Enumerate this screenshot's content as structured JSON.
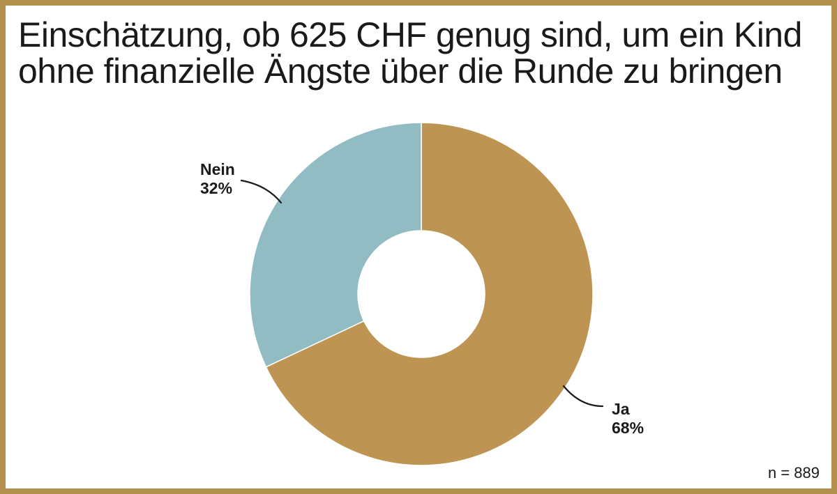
{
  "frame": {
    "border_color": "#b2914e",
    "background_color": "#ffffff"
  },
  "title": {
    "full": "Einschätzung, ob 625 CHF genug sind, um ein Kind ohne finanzielle Ängste über die Runde zu bringen",
    "line1": "Einschätzung, ob 625 CHF genug sind, um ein Kind",
    "line2": "ohne finanzielle Ängste über die Runde zu bringen"
  },
  "chart_data": {
    "type": "pie",
    "subtype": "donut",
    "title": "Einschätzung, ob 625 CHF genug sind, um ein Kind ohne finanzielle Ängste über die Runde zu bringen",
    "unit": "%",
    "start_angle_deg": 0,
    "direction": "clockwise",
    "inner_radius_ratio": 0.37,
    "slices": [
      {
        "label": "Ja",
        "value": 68,
        "color": "#bd9451"
      },
      {
        "label": "Nein",
        "value": 32,
        "color": "#91bcc4"
      }
    ],
    "annotation": "n = 889",
    "legend": "none",
    "label_style": "external callouts with curved leader lines"
  },
  "callouts": {
    "nein": {
      "name": "Nein",
      "pct": "32%"
    },
    "ja": {
      "name": "Ja",
      "pct": "68%"
    }
  },
  "footnote": {
    "text": "n = 889"
  }
}
